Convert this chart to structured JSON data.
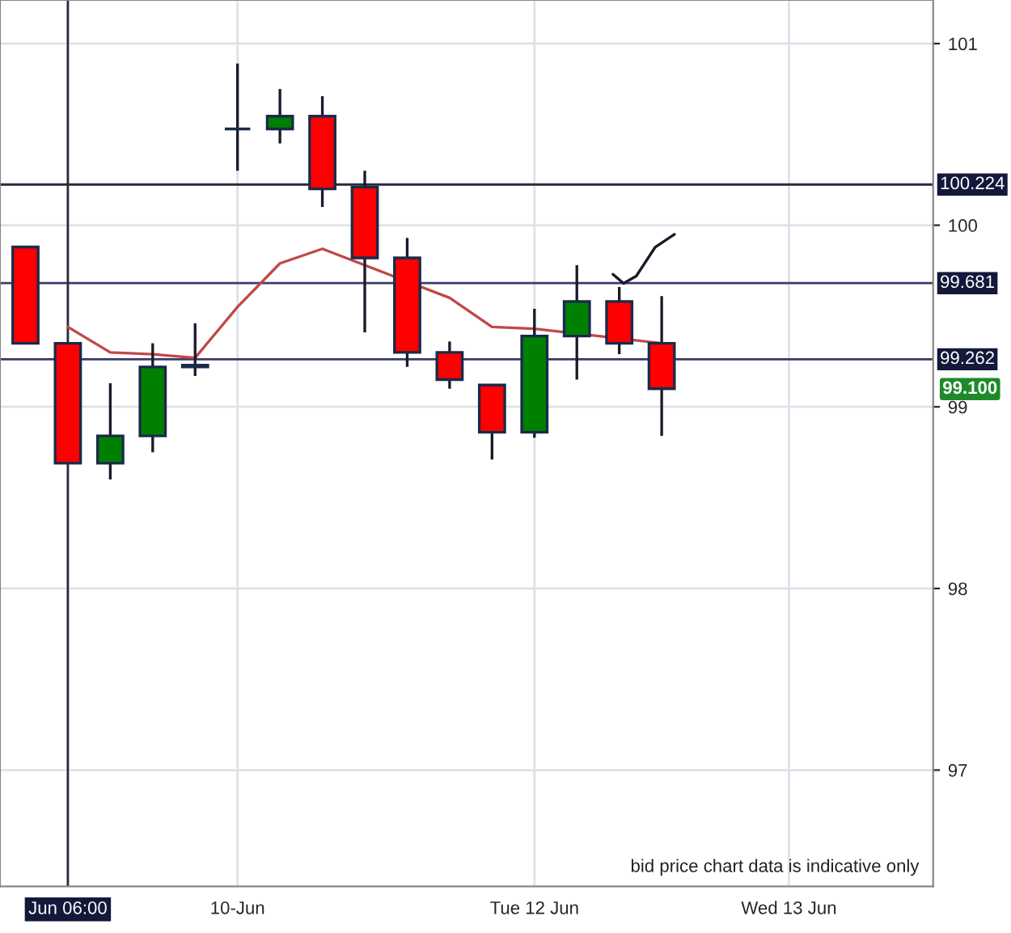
{
  "chart_data": {
    "type": "candlestick",
    "categories": [
      null,
      "Jun 06:00",
      null,
      null,
      null,
      "10-Jun",
      null,
      null,
      null,
      null,
      null,
      null,
      "Tue 12 Jun",
      null,
      null,
      null,
      null,
      null,
      "Wed 13 Jun",
      null,
      null,
      null
    ],
    "ohlc": [
      [
        99.88,
        99.88,
        99.35,
        99.35
      ],
      [
        99.35,
        99.35,
        98.69,
        98.69
      ],
      [
        98.69,
        99.13,
        98.6,
        98.84
      ],
      [
        98.84,
        99.35,
        98.75,
        99.22
      ],
      [
        99.23,
        99.46,
        99.17,
        99.22
      ],
      [
        100.53,
        100.89,
        100.3,
        100.53
      ],
      [
        100.53,
        100.75,
        100.45,
        100.6
      ],
      [
        100.6,
        100.71,
        100.1,
        100.2
      ],
      [
        100.21,
        100.3,
        99.41,
        99.82
      ],
      [
        99.82,
        99.93,
        99.22,
        99.3
      ],
      [
        99.3,
        99.36,
        99.1,
        99.15
      ],
      [
        99.12,
        99.12,
        98.71,
        98.86
      ],
      [
        98.86,
        99.54,
        98.83,
        99.39
      ],
      [
        99.39,
        99.78,
        99.15,
        99.58
      ],
      [
        99.58,
        99.66,
        99.29,
        99.35
      ],
      [
        99.35,
        99.61,
        98.84,
        99.1
      ],
      null,
      null,
      null,
      null,
      null,
      null
    ],
    "colors": [
      "#ff0000",
      "#ff0000",
      "#008000",
      "#008000",
      "#ff0000",
      "#1a2a4a",
      "#008000",
      "#ff0000",
      "#ff0000",
      "#ff0000",
      "#ff0000",
      "#ff0000",
      "#008000",
      "#008000",
      "#ff0000",
      "#ff0000",
      null,
      null,
      null,
      null,
      null,
      null
    ],
    "series": [
      {
        "type": "line",
        "color": "#c04848",
        "values": [
          null,
          99.44,
          99.3,
          99.29,
          99.27,
          99.55,
          99.79,
          99.87,
          null,
          null,
          99.6,
          99.44,
          99.43,
          null,
          null,
          99.35,
          null,
          null,
          null,
          null,
          null,
          null
        ]
      }
    ],
    "ylim": [
      96.36,
      101.24
    ],
    "yticks": [
      97,
      98,
      99,
      100,
      101
    ],
    "grid": true,
    "ref_lines": [
      {
        "axis": "y",
        "value": 100.224,
        "label": "100.224",
        "color": "#2a2a3a"
      },
      {
        "axis": "y",
        "value": 99.681,
        "label": "99.681",
        "color": "#3a3a6a"
      },
      {
        "axis": "y",
        "value": 99.262,
        "label": "99.262",
        "color": "#3a3a6a"
      },
      {
        "axis": "x",
        "value": "Jun 06:00",
        "color": "#2a2a3a"
      }
    ],
    "annotations": [
      "99.100",
      "bid price chart data is indicative only"
    ]
  }
}
